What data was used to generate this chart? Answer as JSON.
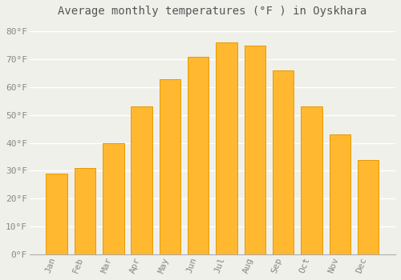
{
  "title": "Average monthly temperatures (°F ) in Oyskhara",
  "months": [
    "Jan",
    "Feb",
    "Mar",
    "Apr",
    "May",
    "Jun",
    "Jul",
    "Aug",
    "Sep",
    "Oct",
    "Nov",
    "Dec"
  ],
  "values": [
    29,
    31,
    40,
    53,
    63,
    71,
    76,
    75,
    66,
    53,
    43,
    34
  ],
  "bar_color": "#FFB830",
  "bar_edge_color": "#E89A00",
  "background_color": "#F0F0EB",
  "grid_color": "#FFFFFF",
  "plot_bg_color": "#E8E8E3",
  "ylim": [
    0,
    83
  ],
  "yticks": [
    0,
    10,
    20,
    30,
    40,
    50,
    60,
    70,
    80
  ],
  "ytick_labels": [
    "0°F",
    "10°F",
    "20°F",
    "30°F",
    "40°F",
    "50°F",
    "60°F",
    "70°F",
    "80°F"
  ],
  "title_fontsize": 10,
  "tick_fontsize": 8,
  "tick_font_color": "#888888",
  "title_font_color": "#555555",
  "bar_width": 0.75
}
